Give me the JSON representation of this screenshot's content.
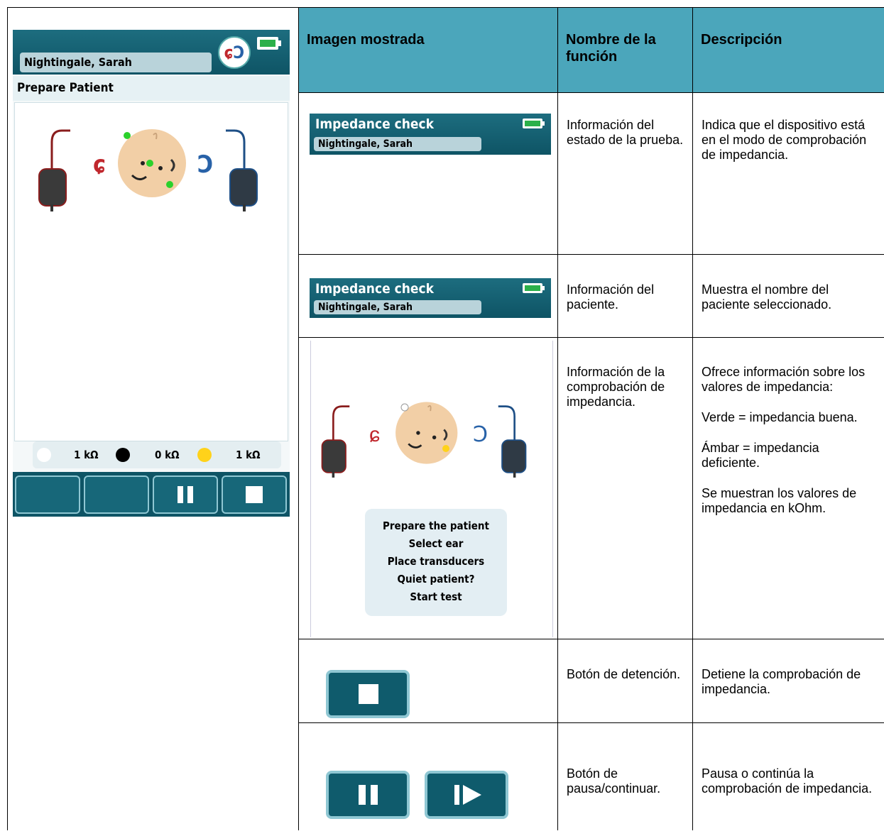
{
  "device": {
    "patient_name": "Nightingale, Sarah",
    "screen_title": "Prepare Patient",
    "impedance": [
      "1 kΩ",
      "0 kΩ",
      "1 kΩ"
    ]
  },
  "table": {
    "headers": [
      "Imagen mostrada",
      "Nombre de la función",
      "Descripción"
    ],
    "rows": [
      {
        "image": {
          "title": "Impedance check",
          "patient_name": "Nightingale, Sarah"
        },
        "function": "Información del estado de la prueba.",
        "description": [
          "Indica que el dispositivo está en el modo de comprobación de impedancia."
        ]
      },
      {
        "image": {
          "title": "Impedance check",
          "patient_name": "Nightingale, Sarah"
        },
        "function": "Información del paciente.",
        "description": [
          "Muestra el nombre del paciente seleccionado."
        ]
      },
      {
        "image": {
          "messages": [
            "Prepare the patient",
            "Select ear",
            "Place transducers",
            "Quiet patient?",
            "Start test"
          ]
        },
        "function": "Información de la comprobación de impedancia.",
        "description": [
          "Ofrece información sobre los valores de impedancia:",
          "Verde = impedancia buena.",
          "Ámbar = impedancia deficiente.",
          "Se muestran los valores de impedancia en kOhm."
        ]
      },
      {
        "function": "Botón de detención.",
        "description": [
          "Detiene la comprobación de impedancia."
        ]
      },
      {
        "function": "Botón de pausa/continuar.",
        "description": [
          "Pausa o continúa la comprobación de impedancia."
        ]
      }
    ]
  }
}
